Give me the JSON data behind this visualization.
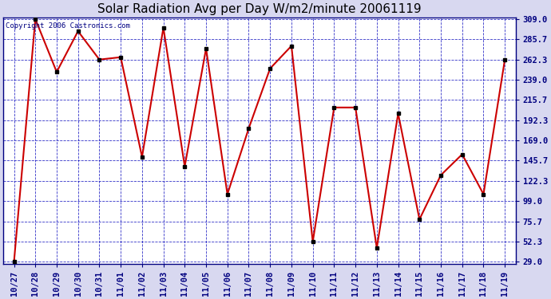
{
  "title": "Solar Radiation Avg per Day W/m2/minute 20061119",
  "copyright": "Copyright 2006 Castronics.com",
  "x_labels": [
    "10/27",
    "10/28",
    "10/29",
    "10/30",
    "10/31",
    "11/01",
    "11/02",
    "11/03",
    "11/04",
    "11/05",
    "11/06",
    "11/07",
    "11/08",
    "11/09",
    "11/10",
    "11/11",
    "11/12",
    "11/13",
    "11/14",
    "11/15",
    "11/16",
    "11/17",
    "11/18",
    "11/19"
  ],
  "y_values": [
    29.0,
    309.0,
    248.0,
    295.0,
    262.3,
    265.0,
    150.0,
    299.0,
    139.0,
    275.0,
    107.0,
    183.0,
    252.0,
    278.0,
    52.3,
    207.0,
    207.0,
    45.0,
    200.0,
    78.0,
    129.0,
    153.0,
    107.0,
    262.3
  ],
  "y_min": 29.0,
  "y_max": 309.0,
  "y_ticks": [
    29.0,
    52.3,
    75.7,
    99.0,
    122.3,
    145.7,
    169.0,
    192.3,
    215.7,
    239.0,
    262.3,
    285.7,
    309.0
  ],
  "line_color": "#cc0000",
  "marker_color": "#000000",
  "bg_color": "#d8d8f0",
  "plot_bg_color": "#ffffff",
  "grid_color": "#0000bb",
  "title_color": "#000000",
  "title_fontsize": 11,
  "tick_fontsize": 7.5,
  "copyright_fontsize": 6.5
}
